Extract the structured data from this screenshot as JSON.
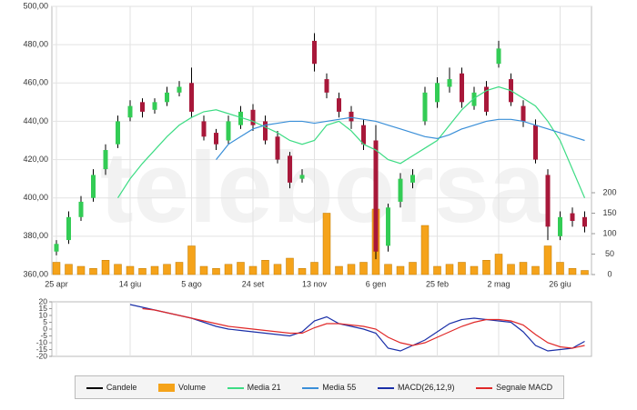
{
  "chart_data": [
    {
      "type": "candlestick",
      "watermark": "teleborsa",
      "categories": [
        "25 apr",
        null,
        null,
        null,
        null,
        null,
        "14 giu",
        null,
        null,
        null,
        null,
        "5 ago",
        null,
        null,
        null,
        null,
        "24 set",
        null,
        null,
        null,
        null,
        "13 nov",
        null,
        null,
        null,
        null,
        "6 gen",
        null,
        null,
        null,
        null,
        "25 feb",
        null,
        null,
        null,
        null,
        "2 mag",
        null,
        null,
        null,
        null,
        "26 giu",
        null,
        null
      ],
      "up_color": "#33cc55",
      "down_color": "#a8183a",
      "ylim": [
        360,
        500
      ],
      "yticks": [
        {
          "value": 360,
          "label": "360,00"
        },
        {
          "value": 380,
          "label": "380,00"
        },
        {
          "value": 400,
          "label": "400,00"
        },
        {
          "value": 420,
          "label": "420,00"
        },
        {
          "value": 440,
          "label": "440,00"
        },
        {
          "value": 460,
          "label": "460,00"
        },
        {
          "value": 480,
          "label": "480,00"
        },
        {
          "value": 500,
          "label": "500,00"
        }
      ],
      "y2lim": [
        0,
        200
      ],
      "y2ticks": [
        0,
        50,
        100,
        150,
        200
      ],
      "grid": true,
      "series": [
        {
          "name": "Candele",
          "color": "#000000",
          "open": [
            372,
            378,
            390,
            400,
            415,
            428,
            442,
            450,
            446,
            450,
            455,
            460,
            440,
            434,
            430,
            438,
            446,
            440,
            432,
            422,
            410,
            482,
            462,
            452,
            445,
            438,
            430,
            375,
            398,
            408,
            440,
            450,
            458,
            465,
            448,
            458,
            470,
            462,
            448,
            438,
            412,
            380,
            392,
            390
          ],
          "high": [
            378,
            393,
            401,
            415,
            428,
            443,
            451,
            452,
            452,
            458,
            461,
            468,
            443,
            436,
            443,
            448,
            449,
            443,
            435,
            424,
            415,
            486,
            465,
            455,
            448,
            441,
            438,
            397,
            413,
            415,
            458,
            463,
            468,
            468,
            458,
            461,
            482,
            465,
            451,
            441,
            415,
            393,
            395,
            393
          ],
          "low": [
            370,
            376,
            388,
            398,
            412,
            426,
            440,
            442,
            444,
            448,
            453,
            442,
            430,
            425,
            428,
            436,
            435,
            428,
            418,
            405,
            408,
            466,
            452,
            442,
            436,
            425,
            368,
            372,
            395,
            405,
            438,
            447,
            455,
            447,
            446,
            443,
            468,
            448,
            437,
            418,
            378,
            378,
            385,
            382
          ],
          "close": [
            376,
            390,
            398,
            412,
            425,
            440,
            448,
            445,
            450,
            455,
            458,
            445,
            432,
            428,
            440,
            445,
            438,
            430,
            420,
            408,
            412,
            470,
            455,
            445,
            440,
            428,
            372,
            395,
            410,
            412,
            455,
            460,
            462,
            450,
            455,
            445,
            478,
            450,
            440,
            420,
            385,
            390,
            388,
            385
          ]
        },
        {
          "name": "Volume",
          "color": "#f5a31a",
          "axis": "y2",
          "values": [
            30,
            25,
            20,
            15,
            35,
            25,
            20,
            15,
            20,
            25,
            30,
            70,
            20,
            15,
            25,
            30,
            20,
            35,
            25,
            40,
            15,
            30,
            150,
            20,
            25,
            30,
            160,
            25,
            20,
            30,
            120,
            20,
            25,
            30,
            20,
            35,
            50,
            25,
            30,
            20,
            70,
            30,
            15,
            10
          ]
        },
        {
          "name": "Media 21",
          "color": "#3ddc84",
          "values": [
            null,
            null,
            null,
            null,
            null,
            400,
            410,
            418,
            425,
            432,
            438,
            442,
            445,
            446,
            444,
            442,
            440,
            437,
            434,
            430,
            428,
            430,
            438,
            440,
            435,
            428,
            425,
            420,
            418,
            422,
            426,
            430,
            438,
            446,
            452,
            456,
            458,
            456,
            452,
            448,
            440,
            430,
            415,
            400
          ]
        },
        {
          "name": "Media 55",
          "color": "#3a8fd8",
          "values": [
            null,
            null,
            null,
            null,
            null,
            null,
            null,
            null,
            null,
            null,
            null,
            null,
            null,
            420,
            428,
            432,
            436,
            438,
            439,
            440,
            440,
            439,
            440,
            441,
            442,
            441,
            440,
            438,
            436,
            434,
            432,
            431,
            433,
            436,
            438,
            440,
            441,
            441,
            440,
            438,
            436,
            434,
            432,
            430
          ]
        }
      ]
    },
    {
      "type": "line",
      "ylim": [
        -20,
        20
      ],
      "yticks": [
        20,
        15,
        10,
        5,
        0,
        -5,
        -10,
        -15,
        -20
      ],
      "grid": true,
      "series": [
        {
          "name": "MACD(26,12,9)",
          "color": "#1a2fa8",
          "values": [
            null,
            null,
            null,
            null,
            null,
            null,
            18,
            16,
            14,
            12,
            10,
            8,
            5,
            2,
            0,
            -1,
            -2,
            -3,
            -4,
            -5,
            -2,
            6,
            9,
            4,
            2,
            0,
            -3,
            -14,
            -16,
            -12,
            -8,
            -2,
            4,
            7,
            8,
            7,
            6,
            5,
            -2,
            -12,
            -16,
            -15,
            -14,
            -9
          ]
        },
        {
          "name": "Segnale MACD",
          "color": "#e02828",
          "values": [
            null,
            null,
            null,
            null,
            null,
            null,
            null,
            15,
            14,
            12,
            10,
            8,
            6,
            4,
            2,
            1,
            0,
            -1,
            -2,
            -3,
            -3,
            1,
            4,
            4,
            3,
            2,
            0,
            -6,
            -10,
            -12,
            -10,
            -6,
            -2,
            2,
            5,
            7,
            7,
            6,
            3,
            -4,
            -10,
            -13,
            -14,
            -12
          ]
        }
      ]
    }
  ]
}
